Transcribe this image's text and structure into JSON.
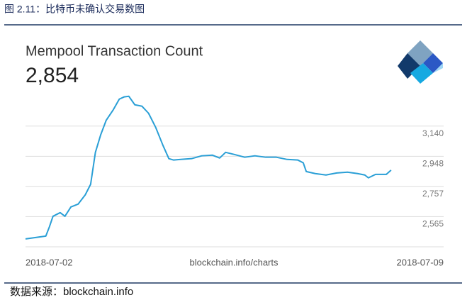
{
  "caption": "图 2.11：比特币未确认交易数图",
  "source_note": "数据来源：blockchain.info",
  "chart_data": {
    "type": "line",
    "title": "Mempool Transaction Count",
    "current_value": "2,854",
    "watermark": "blockchain.info/charts",
    "x": [
      0,
      0.17,
      0.34,
      0.4,
      0.46,
      0.58,
      0.66,
      0.76,
      0.88,
      1.0,
      1.09,
      1.17,
      1.26,
      1.35,
      1.47,
      1.57,
      1.65,
      1.73,
      1.83,
      1.95,
      2.06,
      2.18,
      2.3,
      2.4,
      2.48,
      2.6,
      2.78,
      2.95,
      3.13,
      3.25,
      3.35,
      3.49,
      3.67,
      3.84,
      4.02,
      4.2,
      4.38,
      4.56,
      4.65,
      4.7,
      4.85,
      5.03,
      5.21,
      5.39,
      5.56,
      5.68,
      5.74,
      5.86,
      6.04,
      6.12
    ],
    "series": [
      {
        "name": "Mempool Transaction Count",
        "color": "#2a9fd6",
        "values": [
          2423,
          2432,
          2441,
          2500,
          2567,
          2590,
          2567,
          2626,
          2644,
          2703,
          2770,
          2973,
          3086,
          3176,
          3244,
          3311,
          3325,
          3329,
          3275,
          3266,
          3221,
          3131,
          3018,
          2933,
          2924,
          2928,
          2933,
          2951,
          2955,
          2937,
          2973,
          2960,
          2942,
          2951,
          2942,
          2942,
          2928,
          2924,
          2906,
          2851,
          2838,
          2829,
          2842,
          2847,
          2838,
          2829,
          2811,
          2833,
          2833,
          2860
        ]
      }
    ],
    "xlim": [
      0,
      7
    ],
    "xticks": [
      {
        "value": 0,
        "label": "2018-07-02"
      },
      {
        "value": 7,
        "label": "2018-07-09"
      }
    ],
    "ylim": [
      2373,
      3355
    ],
    "yticks": [
      {
        "value": 3140,
        "label": "3,140"
      },
      {
        "value": 2948,
        "label": "2,948"
      },
      {
        "value": 2757,
        "label": "2,757"
      },
      {
        "value": 2565,
        "label": "2,565"
      }
    ],
    "grid": true
  }
}
